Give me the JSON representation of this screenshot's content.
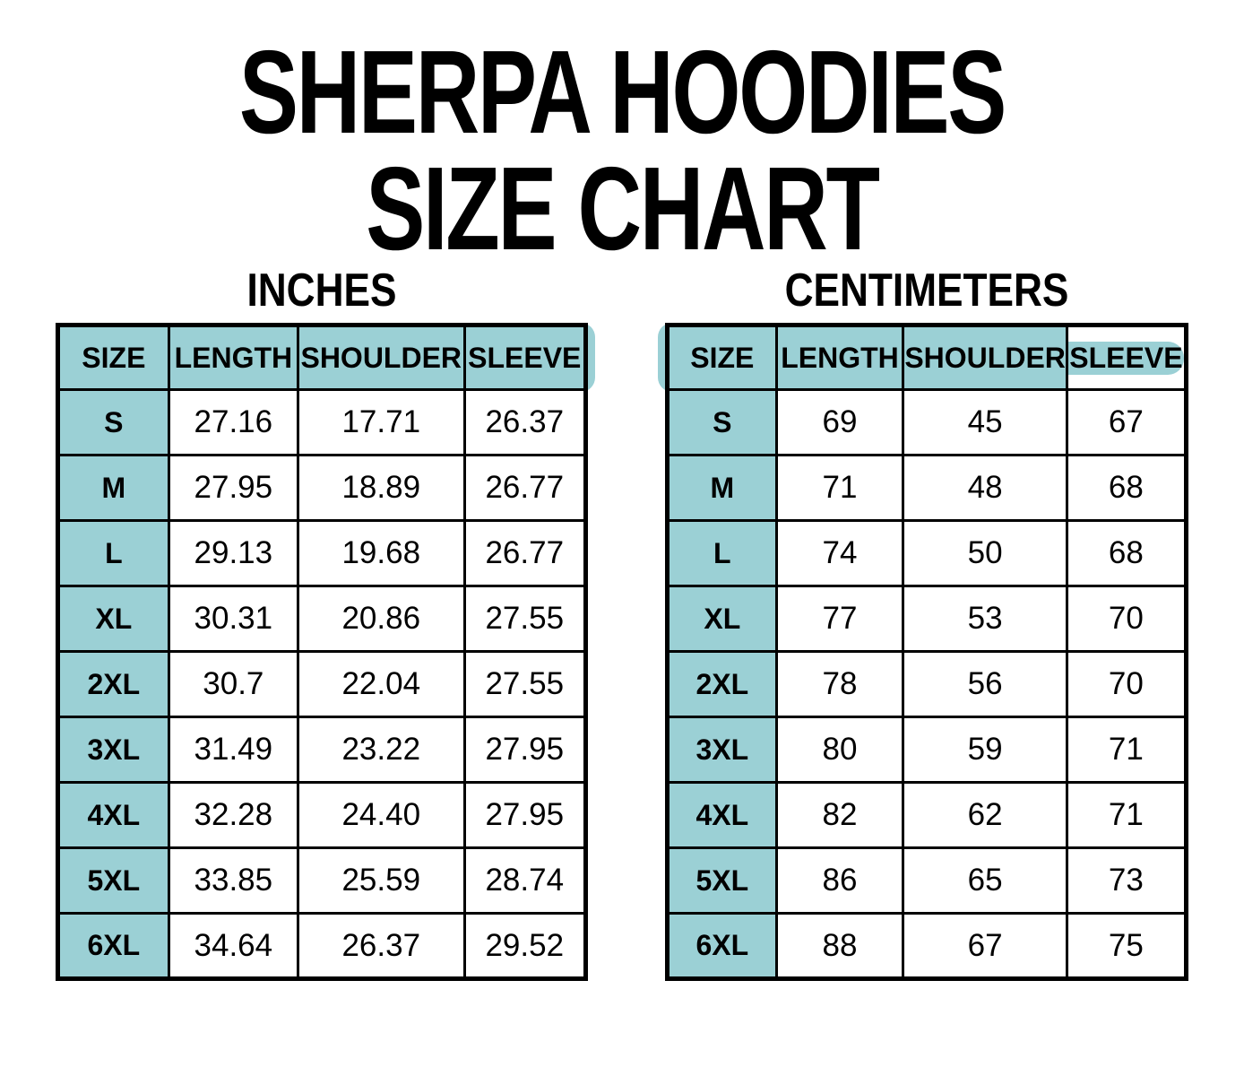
{
  "page_title": {
    "line1": "SHERPA HOODIES",
    "line2": "SIZE CHART"
  },
  "colors": {
    "header_fill": "#9bd0d5",
    "border": "#000000",
    "background": "#ffffff",
    "text": "#000000"
  },
  "tables": [
    {
      "id": "inches",
      "unit_label": "INCHES",
      "columns": [
        "SIZE",
        "LENGTH",
        "SHOULDER",
        "SLEEVE"
      ],
      "rows": [
        [
          "S",
          "27.16",
          "17.71",
          "26.37"
        ],
        [
          "M",
          "27.95",
          "18.89",
          "26.77"
        ],
        [
          "L",
          "29.13",
          "19.68",
          "26.77"
        ],
        [
          "XL",
          "30.31",
          "20.86",
          "27.55"
        ],
        [
          "2XL",
          "30.7",
          "22.04",
          "27.55"
        ],
        [
          "3XL",
          "31.49",
          "23.22",
          "27.95"
        ],
        [
          "4XL",
          "32.28",
          "24.40",
          "27.95"
        ],
        [
          "5XL",
          "33.85",
          "25.59",
          "28.74"
        ],
        [
          "6XL",
          "34.64",
          "26.37",
          "29.52"
        ]
      ]
    },
    {
      "id": "centimeters",
      "unit_label": "CENTIMETERS",
      "columns": [
        "SIZE",
        "LENGTH",
        "SHOULDER",
        "SLEEVE"
      ],
      "rows": [
        [
          "S",
          "69",
          "45",
          "67"
        ],
        [
          "M",
          "71",
          "48",
          "68"
        ],
        [
          "L",
          "74",
          "50",
          "68"
        ],
        [
          "XL",
          "77",
          "53",
          "70"
        ],
        [
          "2XL",
          "78",
          "56",
          "70"
        ],
        [
          "3XL",
          "80",
          "59",
          "71"
        ],
        [
          "4XL",
          "82",
          "62",
          "71"
        ],
        [
          "5XL",
          "86",
          "65",
          "73"
        ],
        [
          "6XL",
          "88",
          "67",
          "75"
        ]
      ]
    }
  ]
}
